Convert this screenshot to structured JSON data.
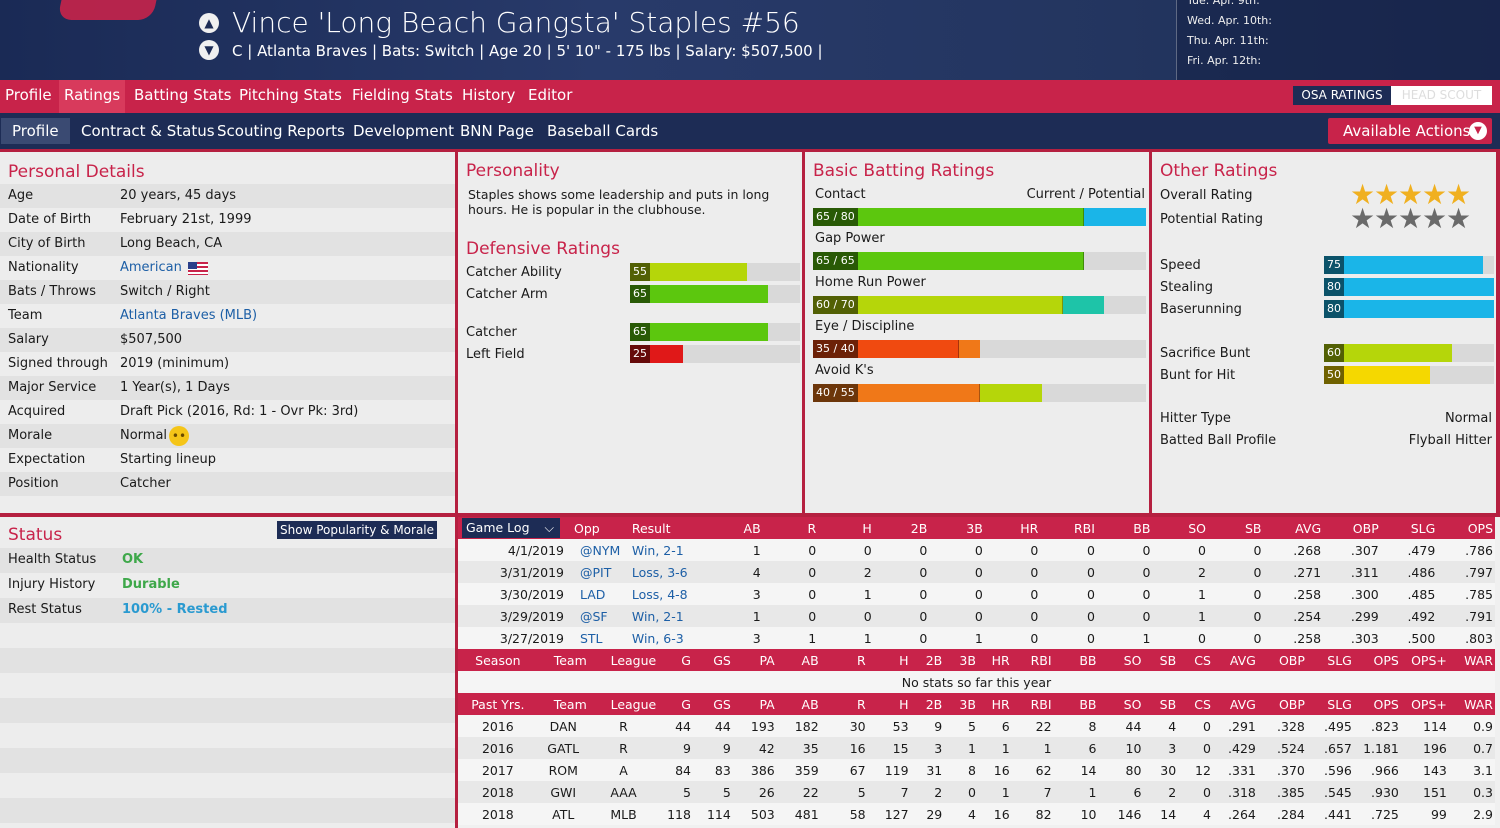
{
  "player": {
    "name": "Vince 'Long Beach Gangsta' Staples  #56",
    "info": "C | Atlanta Braves  |  Bats: Switch  |  Age 20  |  5' 10\" - 175 lbs  |  Salary: $507,500  |"
  },
  "schedule": [
    "Tue. Apr. 9th:",
    "Wed. Apr. 10th:",
    "Thu. Apr. 11th:",
    "Fri. Apr. 12th:"
  ],
  "nav": {
    "tabs": [
      "Profile",
      "Ratings",
      "Batting Stats",
      "Pitching Stats",
      "Fielding Stats",
      "History",
      "Editor"
    ],
    "active": "Ratings",
    "osa": "OSA RATINGS",
    "head_scout": "HEAD SCOUT"
  },
  "subnav": {
    "tabs": [
      "Profile",
      "Contract & Status",
      "Scouting Reports",
      "Development",
      "BNN Page",
      "Baseball Cards"
    ],
    "active": "Profile",
    "actions": "Available Actions"
  },
  "personal": {
    "title": "Personal Details",
    "rows": [
      {
        "k": "Age",
        "v": "20 years, 45 days"
      },
      {
        "k": "Date of Birth",
        "v": "February 21st, 1999"
      },
      {
        "k": "City of Birth",
        "v": "Long Beach, CA"
      },
      {
        "k": "Nationality",
        "v": "American",
        "link": true,
        "flag": true
      },
      {
        "k": "Bats / Throws",
        "v": "Switch / Right"
      },
      {
        "k": "Team",
        "v": "Atlanta Braves (MLB)",
        "link": true
      },
      {
        "k": "Salary",
        "v": "$507,500"
      },
      {
        "k": "Signed through",
        "v": "2019 (minimum)"
      },
      {
        "k": "Major Service",
        "v": "1 Year(s), 1 Days"
      },
      {
        "k": "Acquired",
        "v": "Draft Pick (2016, Rd: 1 - Ovr Pk: 3rd)"
      },
      {
        "k": "Morale",
        "v": "Normal",
        "emoji": true
      },
      {
        "k": "Expectation",
        "v": "Starting lineup"
      },
      {
        "k": "Position",
        "v": "Catcher"
      }
    ]
  },
  "personality": {
    "title": "Personality",
    "text": "Staples shows some leadership and puts in long hours. He is popular in the clubhouse."
  },
  "defensive": {
    "title": "Defensive Ratings",
    "items": [
      {
        "label": "Catcher Ability",
        "value": 55,
        "color": "#b5d60a"
      },
      {
        "label": "Catcher Arm",
        "value": 65,
        "color": "#5cc70e"
      },
      {
        "label": "Catcher",
        "value": 65,
        "color": "#5cc70e"
      },
      {
        "label": "Left Field",
        "value": 25,
        "color": "#e01818"
      }
    ]
  },
  "batting": {
    "title": "Basic Batting Ratings",
    "header_left": "Contact",
    "header_right": "Current / Potential",
    "items": [
      {
        "label": "Contact",
        "text": "65 / 80",
        "cur": 65,
        "pot": 80,
        "cur_color": "#5cc70e",
        "pot_color": "#1ab5e8"
      },
      {
        "label": "Gap Power",
        "text": "65 / 65",
        "cur": 65,
        "pot": 65,
        "cur_color": "#5cc70e",
        "pot_color": "#5cc70e"
      },
      {
        "label": "Home Run Power",
        "text": "60 / 70",
        "cur": 60,
        "pot": 70,
        "cur_color": "#b5d60a",
        "pot_color": "#1ec4a8"
      },
      {
        "label": "Eye / Discipline",
        "text": "35 / 40",
        "cur": 35,
        "pot": 40,
        "cur_color": "#f04a10",
        "pot_color": "#f07818"
      },
      {
        "label": "Avoid K's",
        "text": "40 / 55",
        "cur": 40,
        "pot": 55,
        "cur_color": "#f07818",
        "pot_color": "#b5d60a"
      }
    ]
  },
  "other": {
    "title": "Other Ratings",
    "overall_label": "Overall Rating",
    "overall_stars": 5,
    "potential_label": "Potential Rating",
    "potential_stars": 5,
    "bars": [
      {
        "label": "Speed",
        "value": 75,
        "color": "#1ab5e8"
      },
      {
        "label": "Stealing",
        "value": 80,
        "color": "#1ab5e8"
      },
      {
        "label": "Baserunning",
        "value": 80,
        "color": "#1ab5e8"
      },
      {
        "label": "Sacrifice Bunt",
        "value": 60,
        "color": "#b5d60a"
      },
      {
        "label": "Bunt for Hit",
        "value": 50,
        "color": "#f5d800"
      }
    ],
    "hitter_type_label": "Hitter Type",
    "hitter_type": "Normal",
    "batted_ball_label": "Batted Ball Profile",
    "batted_ball": "Flyball Hitter"
  },
  "status": {
    "title": "Status",
    "button": "Show Popularity & Morale",
    "rows": [
      {
        "k": "Health Status",
        "v": "OK",
        "cls": "ok"
      },
      {
        "k": "Injury History",
        "v": "Durable",
        "cls": "ok"
      },
      {
        "k": "Rest Status",
        "v": "100% - Rested",
        "cls": "rest"
      }
    ]
  },
  "gamelog": {
    "label": "Game Log",
    "headers": [
      "Opp",
      "Result",
      "AB",
      "R",
      "H",
      "2B",
      "3B",
      "HR",
      "RBI",
      "BB",
      "SO",
      "SB",
      "AVG",
      "OBP",
      "SLG",
      "OPS"
    ],
    "rows": [
      [
        "4/1/2019",
        "@NYM",
        "Win, 2-1",
        "1",
        "0",
        "0",
        "0",
        "0",
        "0",
        "0",
        "0",
        "0",
        "0",
        ".268",
        ".307",
        ".479",
        ".786"
      ],
      [
        "3/31/2019",
        "@PIT",
        "Loss, 3-6",
        "4",
        "0",
        "2",
        "0",
        "0",
        "0",
        "0",
        "0",
        "2",
        "0",
        ".271",
        ".311",
        ".486",
        ".797"
      ],
      [
        "3/30/2019",
        "LAD",
        "Loss, 4-8",
        "3",
        "0",
        "1",
        "0",
        "0",
        "0",
        "0",
        "0",
        "1",
        "0",
        ".258",
        ".300",
        ".485",
        ".785"
      ],
      [
        "3/29/2019",
        "@SF",
        "Win, 2-1",
        "1",
        "0",
        "0",
        "0",
        "0",
        "0",
        "0",
        "0",
        "1",
        "0",
        ".254",
        ".299",
        ".492",
        ".791"
      ],
      [
        "3/27/2019",
        "STL",
        "Win, 6-3",
        "3",
        "1",
        "1",
        "0",
        "1",
        "0",
        "0",
        "1",
        "0",
        "0",
        ".258",
        ".303",
        ".500",
        ".803"
      ]
    ]
  },
  "season": {
    "headers": [
      "Season",
      "Team",
      "League",
      "G",
      "GS",
      "PA",
      "AB",
      "R",
      "H",
      "2B",
      "3B",
      "HR",
      "RBI",
      "BB",
      "SO",
      "SB",
      "CS",
      "AVG",
      "OBP",
      "SLG",
      "OPS",
      "OPS+",
      "WAR"
    ],
    "empty": "No stats so far this year"
  },
  "past": {
    "headers": [
      "Past Yrs.",
      "Team",
      "League",
      "G",
      "GS",
      "PA",
      "AB",
      "R",
      "H",
      "2B",
      "3B",
      "HR",
      "RBI",
      "BB",
      "SO",
      "SB",
      "CS",
      "AVG",
      "OBP",
      "SLG",
      "OPS",
      "OPS+",
      "WAR"
    ],
    "rows": [
      [
        "2016",
        "DAN",
        "R",
        "44",
        "44",
        "193",
        "182",
        "30",
        "53",
        "9",
        "5",
        "6",
        "22",
        "8",
        "44",
        "4",
        "0",
        ".291",
        ".328",
        ".495",
        ".823",
        "114",
        "0.9"
      ],
      [
        "2016",
        "GATL",
        "R",
        "9",
        "9",
        "42",
        "35",
        "16",
        "15",
        "3",
        "1",
        "1",
        "1",
        "6",
        "10",
        "3",
        "0",
        ".429",
        ".524",
        ".657",
        "1.181",
        "196",
        "0.7"
      ],
      [
        "2017",
        "ROM",
        "A",
        "84",
        "83",
        "386",
        "359",
        "67",
        "119",
        "31",
        "8",
        "16",
        "62",
        "14",
        "80",
        "30",
        "12",
        ".331",
        ".370",
        ".596",
        ".966",
        "143",
        "3.1"
      ],
      [
        "2018",
        "GWI",
        "AAA",
        "5",
        "5",
        "26",
        "22",
        "5",
        "7",
        "2",
        "0",
        "1",
        "7",
        "1",
        "6",
        "2",
        "0",
        ".318",
        ".385",
        ".545",
        ".930",
        "151",
        "0.3"
      ],
      [
        "2018",
        "ATL",
        "MLB",
        "118",
        "114",
        "503",
        "481",
        "58",
        "127",
        "29",
        "4",
        "16",
        "82",
        "10",
        "146",
        "14",
        "4",
        ".264",
        ".284",
        ".441",
        ".725",
        "99",
        "2.9"
      ]
    ]
  }
}
